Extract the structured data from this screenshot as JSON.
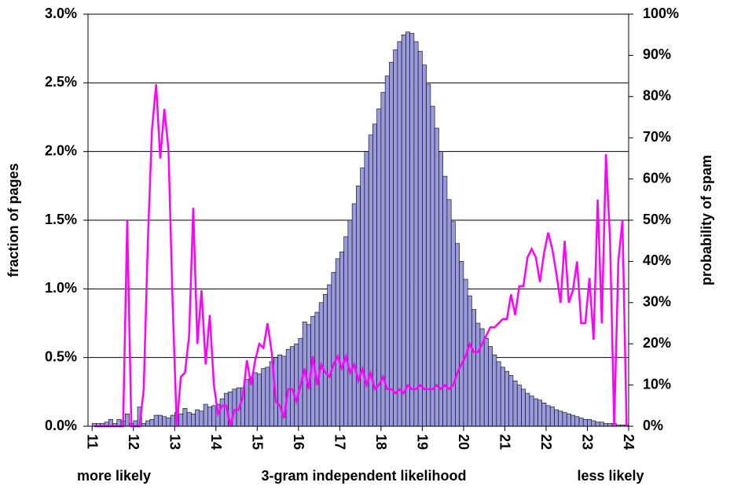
{
  "chart_data": {
    "type": "histogram",
    "ylabel": "fraction of pages",
    "y2label": "probability of spam",
    "xlabel": "3-gram independent likelihood",
    "annotations": [
      "more likely",
      "less likely"
    ],
    "xlim": [
      10.9,
      24
    ],
    "xticks": [
      11,
      12,
      13,
      14,
      15,
      16,
      17,
      18,
      19,
      20,
      21,
      22,
      23,
      24
    ],
    "ylim": [
      0,
      3
    ],
    "yticks": [
      {
        "value": 0,
        "label": "0.0%"
      },
      {
        "value": 0.5,
        "label": "0.5%"
      },
      {
        "value": 1,
        "label": "1.0%"
      },
      {
        "value": 1.5,
        "label": "1.5%"
      },
      {
        "value": 2,
        "label": "2.0%"
      },
      {
        "value": 2.5,
        "label": "2.5%"
      },
      {
        "value": 3,
        "label": "3.0%"
      }
    ],
    "y2lim": [
      0,
      100
    ],
    "y2ticks": [
      {
        "value": 0,
        "label": "0%"
      },
      {
        "value": 10,
        "label": "10%"
      },
      {
        "value": 20,
        "label": "20%"
      },
      {
        "value": 30,
        "label": "30%"
      },
      {
        "value": 40,
        "label": "40%"
      },
      {
        "value": 50,
        "label": "50%"
      },
      {
        "value": 60,
        "label": "60%"
      },
      {
        "value": 70,
        "label": "70%"
      },
      {
        "value": 80,
        "label": "80%"
      },
      {
        "value": 90,
        "label": "90%"
      },
      {
        "value": 100,
        "label": "100%"
      }
    ],
    "grid": true,
    "color": "#9999dd",
    "bins": [
      11,
      11.1,
      11.2,
      11.3,
      11.4,
      11.5,
      11.6,
      11.7,
      11.8,
      11.9,
      12,
      12.1,
      12.2,
      12.3,
      12.4,
      12.5,
      12.6,
      12.7,
      12.8,
      12.9,
      13,
      13.1,
      13.2,
      13.3,
      13.4,
      13.5,
      13.6,
      13.7,
      13.8,
      13.9,
      14,
      14.1,
      14.2,
      14.3,
      14.4,
      14.5,
      14.6,
      14.7,
      14.8,
      14.9,
      15,
      15.1,
      15.2,
      15.3,
      15.4,
      15.5,
      15.6,
      15.7,
      15.8,
      15.9,
      16,
      16.1,
      16.2,
      16.3,
      16.4,
      16.5,
      16.6,
      16.7,
      16.8,
      16.9,
      17,
      17.1,
      17.2,
      17.3,
      17.4,
      17.5,
      17.6,
      17.7,
      17.8,
      17.9,
      18,
      18.1,
      18.2,
      18.3,
      18.4,
      18.5,
      18.6,
      18.7,
      18.8,
      18.9,
      19,
      19.1,
      19.2,
      19.3,
      19.4,
      19.5,
      19.6,
      19.7,
      19.8,
      19.9,
      20,
      20.1,
      20.2,
      20.3,
      20.4,
      20.5,
      20.6,
      20.7,
      20.8,
      20.9,
      21,
      21.1,
      21.2,
      21.3,
      21.4,
      21.5,
      21.6,
      21.7,
      21.8,
      21.9,
      22,
      22.1,
      22.2,
      22.3,
      22.4,
      22.5,
      22.6,
      22.7,
      22.8,
      22.9,
      23,
      23.1,
      23.2,
      23.3,
      23.4,
      23.5,
      23.6,
      23.7,
      23.8,
      23.9,
      24
    ],
    "values": [
      0.02,
      0.02,
      0.02,
      0.03,
      0.05,
      0.02,
      0.05,
      0.04,
      0.09,
      0.02,
      0.04,
      0.14,
      0.02,
      0.04,
      0.05,
      0.08,
      0.08,
      0.07,
      0.06,
      0.08,
      0.1,
      0.09,
      0.13,
      0.1,
      0.09,
      0.12,
      0.11,
      0.16,
      0.14,
      0.15,
      0.16,
      0.2,
      0.24,
      0.25,
      0.27,
      0.28,
      0.28,
      0.34,
      0.36,
      0.39,
      0.38,
      0.42,
      0.43,
      0.47,
      0.5,
      0.52,
      0.51,
      0.56,
      0.58,
      0.6,
      0.64,
      0.76,
      0.74,
      0.8,
      0.83,
      0.9,
      0.96,
      1.03,
      1.12,
      1.22,
      1.27,
      1.38,
      1.5,
      1.62,
      1.75,
      1.88,
      2.0,
      2.12,
      2.2,
      2.31,
      2.43,
      2.55,
      2.65,
      2.74,
      2.8,
      2.85,
      2.87,
      2.86,
      2.8,
      2.73,
      2.63,
      2.49,
      2.33,
      2.17,
      2.0,
      1.82,
      1.65,
      1.49,
      1.33,
      1.2,
      1.07,
      0.95,
      0.85,
      0.75,
      0.71,
      0.64,
      0.58,
      0.52,
      0.47,
      0.43,
      0.4,
      0.37,
      0.33,
      0.3,
      0.27,
      0.24,
      0.22,
      0.2,
      0.19,
      0.17,
      0.15,
      0.14,
      0.12,
      0.11,
      0.1,
      0.09,
      0.08,
      0.07,
      0.06,
      0.05,
      0.05,
      0.04,
      0.03,
      0.03,
      0.02,
      0.02,
      0.02,
      0.01,
      0.01,
      0.01
    ],
    "line": {
      "color": "#ff00ff",
      "axis": "y2",
      "values": [
        0,
        0,
        0,
        0,
        0,
        0,
        0,
        0,
        50,
        0,
        0,
        0,
        9,
        45,
        72,
        83,
        65,
        77,
        67,
        30,
        0,
        12,
        13,
        22,
        53,
        20,
        33,
        15,
        27,
        10,
        3,
        5,
        5,
        0,
        4,
        4,
        7,
        16,
        10,
        16,
        20,
        19,
        25,
        18,
        6,
        5,
        2,
        9,
        9,
        6,
        10,
        14,
        9,
        17,
        10,
        15,
        13,
        12,
        15,
        17,
        14,
        17,
        13,
        15,
        11,
        14,
        10,
        13,
        9,
        10,
        12,
        9,
        9,
        8,
        9,
        8,
        10,
        9,
        9,
        10,
        9,
        9,
        9,
        10,
        9,
        10,
        9,
        10,
        13,
        15,
        17,
        20,
        18,
        18,
        20,
        22,
        24,
        24,
        25,
        26,
        26,
        32,
        27,
        34,
        34,
        41,
        43,
        41,
        35,
        42,
        47,
        43,
        37,
        30,
        45,
        30,
        33,
        40,
        25,
        25,
        36,
        21,
        55,
        25,
        66,
        45,
        0,
        40,
        50,
        0
      ]
    }
  }
}
